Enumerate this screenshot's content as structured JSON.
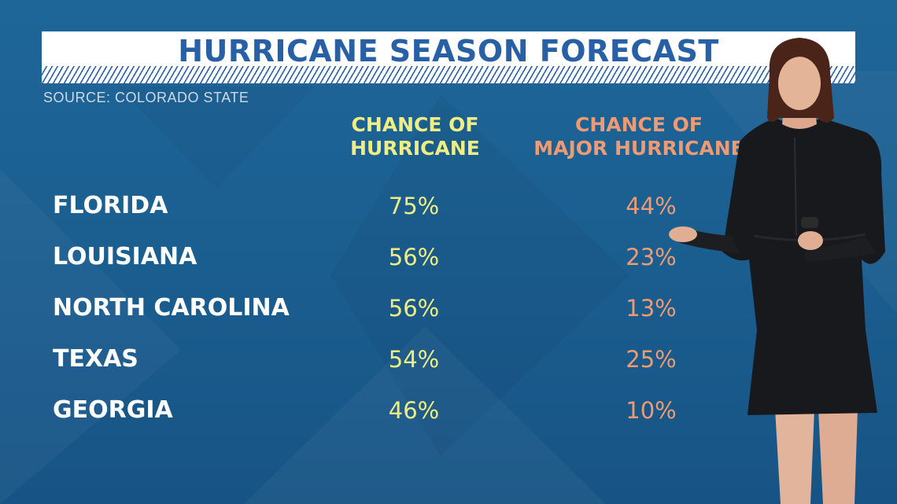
{
  "chart_data": {
    "type": "table",
    "title": "HURRICANE SEASON FORECAST",
    "source": "SOURCE: COLORADO STATE",
    "columns": [
      {
        "line1": "CHANCE OF",
        "line2": "HURRICANE"
      },
      {
        "line1": "CHANCE OF",
        "line2": "MAJOR HURRICANE"
      }
    ],
    "rows": [
      {
        "state": "FLORIDA",
        "hurricane": "75%",
        "major": "44%"
      },
      {
        "state": "LOUISIANA",
        "hurricane": "56%",
        "major": "23%"
      },
      {
        "state": "NORTH CAROLINA",
        "hurricane": "56%",
        "major": "13%"
      },
      {
        "state": "TEXAS",
        "hurricane": "54%",
        "major": "25%"
      },
      {
        "state": "GEORGIA",
        "hurricane": "46%",
        "major": "10%"
      }
    ]
  },
  "colors": {
    "background": "#1b5e8f",
    "title_text": "#2860a6",
    "hurricane_column": "#eeee82",
    "major_hurricane_column": "#ee9a72",
    "state_labels": "#ffffff"
  }
}
